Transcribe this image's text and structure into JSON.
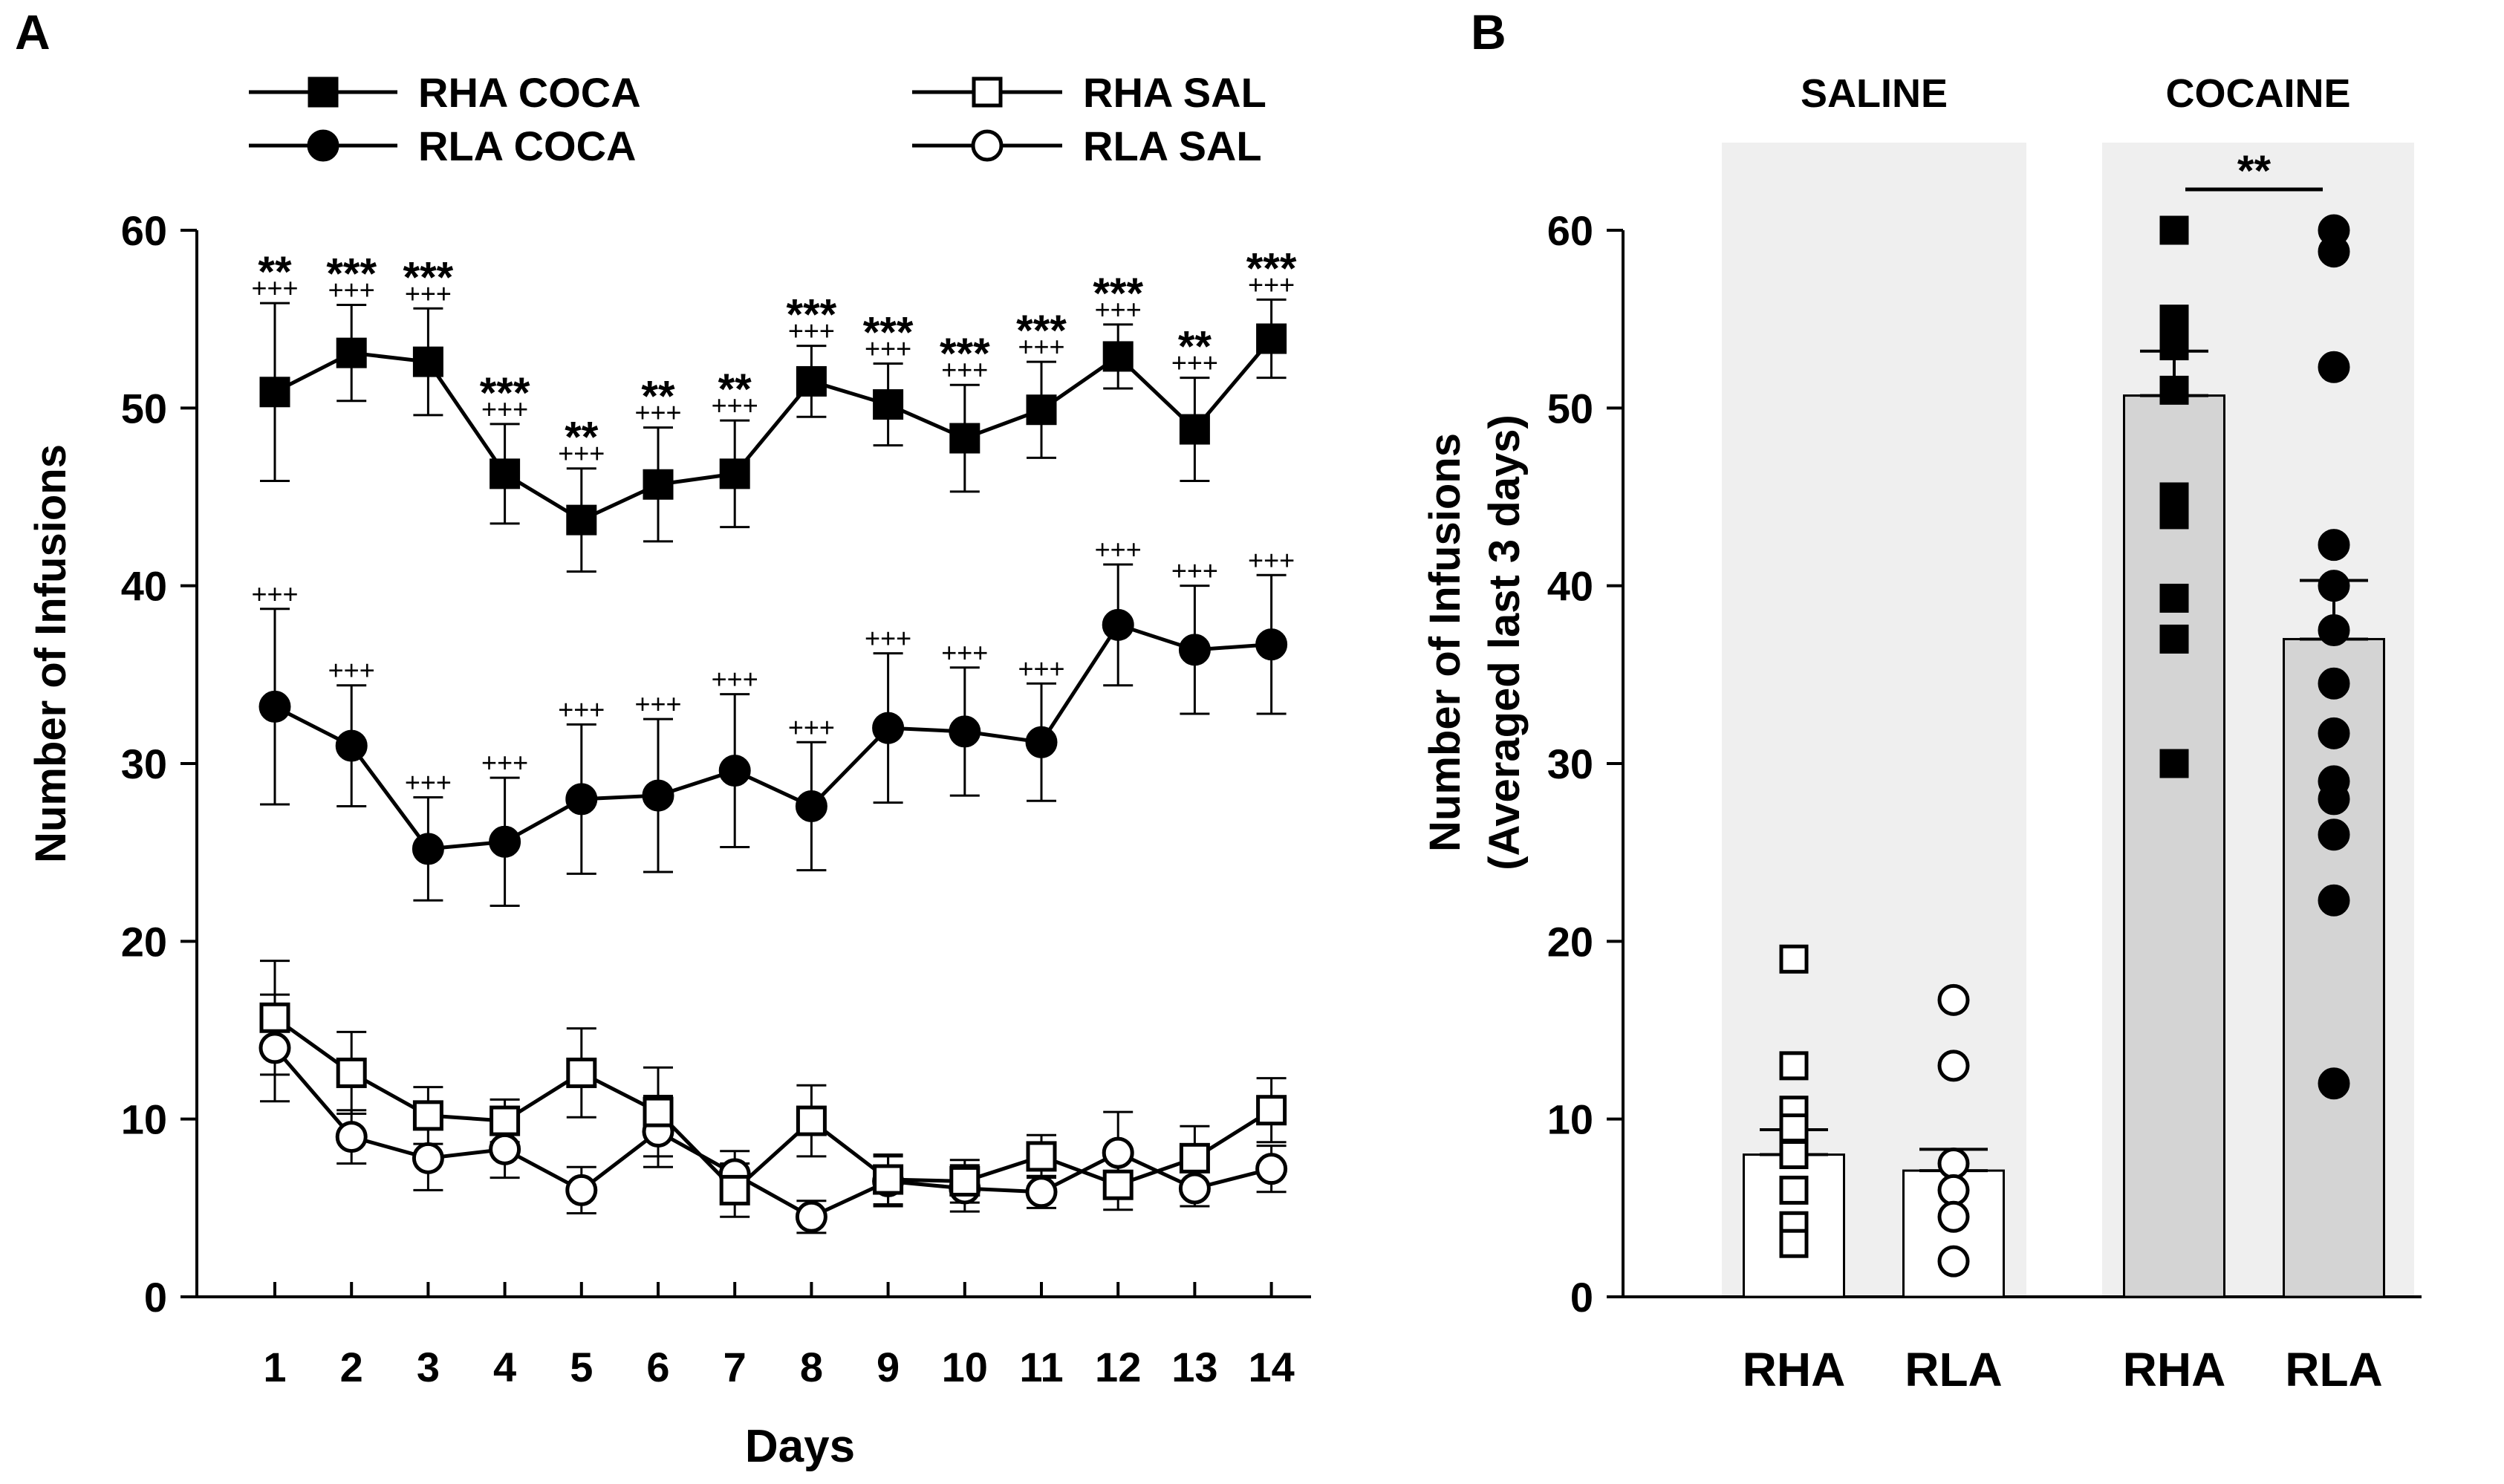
{
  "figure": {
    "panel_a_label": "A",
    "panel_b_label": "B"
  },
  "chart_data": [
    {
      "panel": "A",
      "type": "line",
      "title": "",
      "xlabel": "Days",
      "ylabel": "Number of Infusions",
      "x": [
        1,
        2,
        3,
        4,
        5,
        6,
        7,
        8,
        9,
        10,
        11,
        12,
        13,
        14
      ],
      "x_tick_labels": [
        "1",
        "2",
        "3",
        "4",
        "5",
        "6",
        "7",
        "8",
        "9",
        "10",
        "11",
        "12",
        "13",
        "14"
      ],
      "ylim": [
        0,
        60
      ],
      "y_ticks": [
        0,
        10,
        20,
        30,
        40,
        50,
        60
      ],
      "y_tick_labels": [
        "0",
        "10",
        "20",
        "30",
        "40",
        "50",
        "60"
      ],
      "grid": false,
      "legend_position": "top",
      "series": [
        {
          "name": "RHA COCA",
          "marker": "square-filled",
          "values": [
            50.9,
            53.1,
            52.6,
            46.3,
            43.7,
            45.7,
            46.3,
            51.5,
            50.2,
            48.3,
            49.9,
            52.9,
            48.8,
            53.9
          ],
          "error": [
            5.0,
            2.7,
            3.0,
            2.8,
            2.9,
            3.2,
            3.0,
            2.0,
            2.3,
            3.0,
            2.7,
            1.8,
            2.9,
            2.2
          ],
          "stars": [
            "**",
            "***",
            "***",
            "***",
            "**",
            "**",
            "**",
            "***",
            "***",
            "***",
            "***",
            "***",
            "**",
            "***"
          ],
          "crosses": [
            "+++",
            "+++",
            "+++",
            "+++",
            "+++",
            "+++",
            "+++",
            "+++",
            "+++",
            "+++",
            "+++",
            "+++",
            "+++",
            "+++"
          ]
        },
        {
          "name": "RLA COCA",
          "marker": "circle-filled",
          "values": [
            33.2,
            31.0,
            25.2,
            25.6,
            28.0,
            28.2,
            29.6,
            27.6,
            32.0,
            31.8,
            31.2,
            37.8,
            36.4,
            36.7
          ],
          "error": [
            5.5,
            3.4,
            2.9,
            3.6,
            4.2,
            4.3,
            4.3,
            3.6,
            4.2,
            3.6,
            3.3,
            3.4,
            3.6,
            3.9
          ],
          "crosses": [
            "+++",
            "+++",
            "+++",
            "+++",
            "+++",
            "+++",
            "+++",
            "+++",
            "+++",
            "+++",
            "+++",
            "+++",
            "+++",
            "+++"
          ]
        },
        {
          "name": "RHA SAL",
          "marker": "square-open",
          "values": [
            15.7,
            12.6,
            10.2,
            9.9,
            12.6,
            10.4,
            6.0,
            9.9,
            6.6,
            6.5,
            7.9,
            6.3,
            7.8,
            10.5
          ],
          "error": [
            3.2,
            2.3,
            1.6,
            1.2,
            2.5,
            2.5,
            1.5,
            2.0,
            1.4,
            1.2,
            1.2,
            1.4,
            1.8,
            1.8
          ]
        },
        {
          "name": "RLA SAL",
          "marker": "circle-open",
          "values": [
            14.0,
            9.0,
            7.8,
            8.3,
            6.0,
            9.3,
            6.9,
            4.5,
            6.5,
            6.1,
            5.9,
            8.1,
            6.1,
            7.2
          ],
          "error": [
            3.0,
            1.5,
            1.8,
            1.6,
            1.3,
            2.0,
            1.3,
            0.9,
            1.4,
            1.3,
            0.9,
            2.3,
            1.0,
            1.3
          ]
        }
      ]
    },
    {
      "panel": "B",
      "type": "bar",
      "title": "",
      "xlabel": "",
      "ylabel": "Number of Infusions",
      "ylabel_line2": "(Averaged last 3 days)",
      "ylim": [
        0,
        60
      ],
      "y_ticks": [
        0,
        10,
        20,
        30,
        40,
        50,
        60
      ],
      "y_tick_labels": [
        "0",
        "10",
        "20",
        "30",
        "40",
        "50",
        "60"
      ],
      "grid": false,
      "groups": [
        {
          "label": "SALINE",
          "bars": [
            {
              "category": "RHA",
              "mean": 8.0,
              "sem": 1.4,
              "marker": "square-open",
              "points": [
                19.0,
                13.0,
                10.5,
                9.5,
                8.0,
                6.0,
                4.0,
                3.0
              ]
            },
            {
              "category": "RLA",
              "mean": 7.1,
              "sem": 1.2,
              "marker": "circle-open",
              "points": [
                16.7,
                13.0,
                7.5,
                6.0,
                4.5,
                2.0
              ]
            }
          ]
        },
        {
          "label": "COCAINE",
          "significance": "**",
          "bars": [
            {
              "category": "RHA",
              "mean": 50.7,
              "sem": 2.5,
              "marker": "square-filled",
              "points": [
                60.0,
                55.0,
                53.5,
                51.0,
                45.0,
                44.0,
                39.3,
                37.0,
                30.0
              ]
            },
            {
              "category": "RLA",
              "mean": 37.0,
              "sem": 3.3,
              "marker": "circle-filled",
              "points": [
                60.0,
                58.8,
                52.3,
                42.3,
                40.0,
                37.5,
                34.5,
                31.7,
                29.0,
                28.0,
                26.0,
                22.3,
                12.0
              ]
            }
          ]
        }
      ]
    }
  ]
}
